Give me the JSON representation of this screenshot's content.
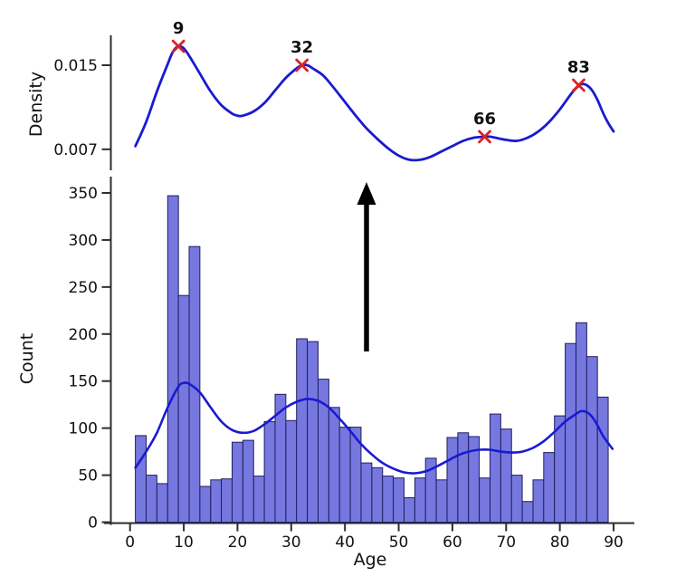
{
  "figure": {
    "background": "#ffffff",
    "colors": {
      "bar_fill": "#7678df",
      "bar_edge": "#1e1e5f",
      "kde_line": "#1a1ad2",
      "peak_marker": "#dd2222",
      "axis": "#2e2e2e",
      "text": "#111111",
      "arrow": "#000000"
    },
    "arrow": {
      "direction": "up"
    }
  },
  "chart_data": [
    {
      "id": "density-kde",
      "type": "line",
      "title": "",
      "xlabel": "",
      "ylabel": "Density",
      "legend": "none",
      "grid": false,
      "yticks": [
        {
          "value": 0.015,
          "label": "0.015"
        },
        {
          "value": 0.007,
          "label": "0.007"
        }
      ],
      "x_range": [
        1,
        90
      ],
      "points": [
        [
          1,
          0.0073
        ],
        [
          3,
          0.0096
        ],
        [
          5,
          0.0125
        ],
        [
          7,
          0.0151
        ],
        [
          8,
          0.0163
        ],
        [
          9,
          0.0168
        ],
        [
          10,
          0.0166
        ],
        [
          11,
          0.0159
        ],
        [
          13,
          0.0142
        ],
        [
          15,
          0.0125
        ],
        [
          17,
          0.0112
        ],
        [
          19,
          0.0104
        ],
        [
          20,
          0.0102
        ],
        [
          21,
          0.0102
        ],
        [
          23,
          0.0106
        ],
        [
          25,
          0.0114
        ],
        [
          27,
          0.0126
        ],
        [
          29,
          0.0138
        ],
        [
          31,
          0.0147
        ],
        [
          32,
          0.015
        ],
        [
          33,
          0.015
        ],
        [
          34,
          0.0147
        ],
        [
          36,
          0.014
        ],
        [
          38,
          0.0128
        ],
        [
          40,
          0.0115
        ],
        [
          42,
          0.0102
        ],
        [
          44,
          0.009
        ],
        [
          46,
          0.008
        ],
        [
          48,
          0.0071
        ],
        [
          50,
          0.0064
        ],
        [
          52,
          0.006
        ],
        [
          54,
          0.006
        ],
        [
          56,
          0.0063
        ],
        [
          58,
          0.0068
        ],
        [
          60,
          0.0073
        ],
        [
          62,
          0.0078
        ],
        [
          64,
          0.0081
        ],
        [
          66,
          0.0082
        ],
        [
          67,
          0.0082
        ],
        [
          68,
          0.0081
        ],
        [
          70,
          0.0079
        ],
        [
          72,
          0.0078
        ],
        [
          74,
          0.0081
        ],
        [
          76,
          0.0087
        ],
        [
          78,
          0.0096
        ],
        [
          80,
          0.0108
        ],
        [
          82,
          0.0122
        ],
        [
          83,
          0.0128
        ],
        [
          84,
          0.0132
        ],
        [
          85,
          0.0131
        ],
        [
          86,
          0.0126
        ],
        [
          87,
          0.0117
        ],
        [
          88,
          0.0105
        ],
        [
          89,
          0.0095
        ],
        [
          90,
          0.0087
        ]
      ],
      "peaks": [
        {
          "x": 9,
          "y": 0.0168,
          "label": "9"
        },
        {
          "x": 32,
          "y": 0.015,
          "label": "32"
        },
        {
          "x": 66,
          "y": 0.0082,
          "label": "66"
        },
        {
          "x": 83.5,
          "y": 0.0131,
          "label": "83"
        }
      ]
    },
    {
      "id": "age-histogram",
      "type": "bar",
      "title": "",
      "xlabel": "Age",
      "ylabel": "Count",
      "legend": "none",
      "grid": false,
      "bin_start": 1,
      "bin_width": 2,
      "counts": [
        92,
        50,
        41,
        347,
        241,
        293,
        38,
        45,
        46,
        85,
        87,
        49,
        107,
        136,
        108,
        195,
        192,
        152,
        122,
        101,
        101,
        63,
        58,
        49,
        47,
        26,
        47,
        68,
        45,
        90,
        95,
        91,
        47,
        115,
        99,
        50,
        22,
        45,
        74,
        113,
        190,
        212,
        176,
        133
      ],
      "kde": [
        [
          1,
          58
        ],
        [
          3,
          75
        ],
        [
          5,
          95
        ],
        [
          7,
          122
        ],
        [
          9,
          144
        ],
        [
          10,
          148
        ],
        [
          11,
          147
        ],
        [
          13,
          138
        ],
        [
          15,
          122
        ],
        [
          17,
          107
        ],
        [
          19,
          98
        ],
        [
          21,
          95
        ],
        [
          23,
          97
        ],
        [
          25,
          104
        ],
        [
          27,
          113
        ],
        [
          29,
          122
        ],
        [
          31,
          128
        ],
        [
          33,
          131
        ],
        [
          35,
          129
        ],
        [
          37,
          122
        ],
        [
          39,
          110
        ],
        [
          41,
          97
        ],
        [
          43,
          83
        ],
        [
          45,
          72
        ],
        [
          47,
          63
        ],
        [
          49,
          57
        ],
        [
          51,
          53
        ],
        [
          53,
          52
        ],
        [
          55,
          54
        ],
        [
          57,
          59
        ],
        [
          59,
          65
        ],
        [
          61,
          71
        ],
        [
          63,
          75
        ],
        [
          65,
          77
        ],
        [
          67,
          77
        ],
        [
          69,
          75
        ],
        [
          71,
          74
        ],
        [
          73,
          75
        ],
        [
          75,
          79
        ],
        [
          77,
          86
        ],
        [
          79,
          96
        ],
        [
          81,
          107
        ],
        [
          83,
          115
        ],
        [
          84,
          118
        ],
        [
          85,
          117
        ],
        [
          86,
          112
        ],
        [
          87,
          103
        ],
        [
          88,
          92
        ],
        [
          89,
          84
        ],
        [
          89.8,
          78
        ]
      ],
      "xticks": [
        0,
        10,
        20,
        30,
        40,
        50,
        60,
        70,
        80,
        90
      ],
      "yticks": [
        0,
        50,
        100,
        150,
        200,
        250,
        300,
        350
      ],
      "ylim": [
        0,
        360
      ]
    }
  ]
}
